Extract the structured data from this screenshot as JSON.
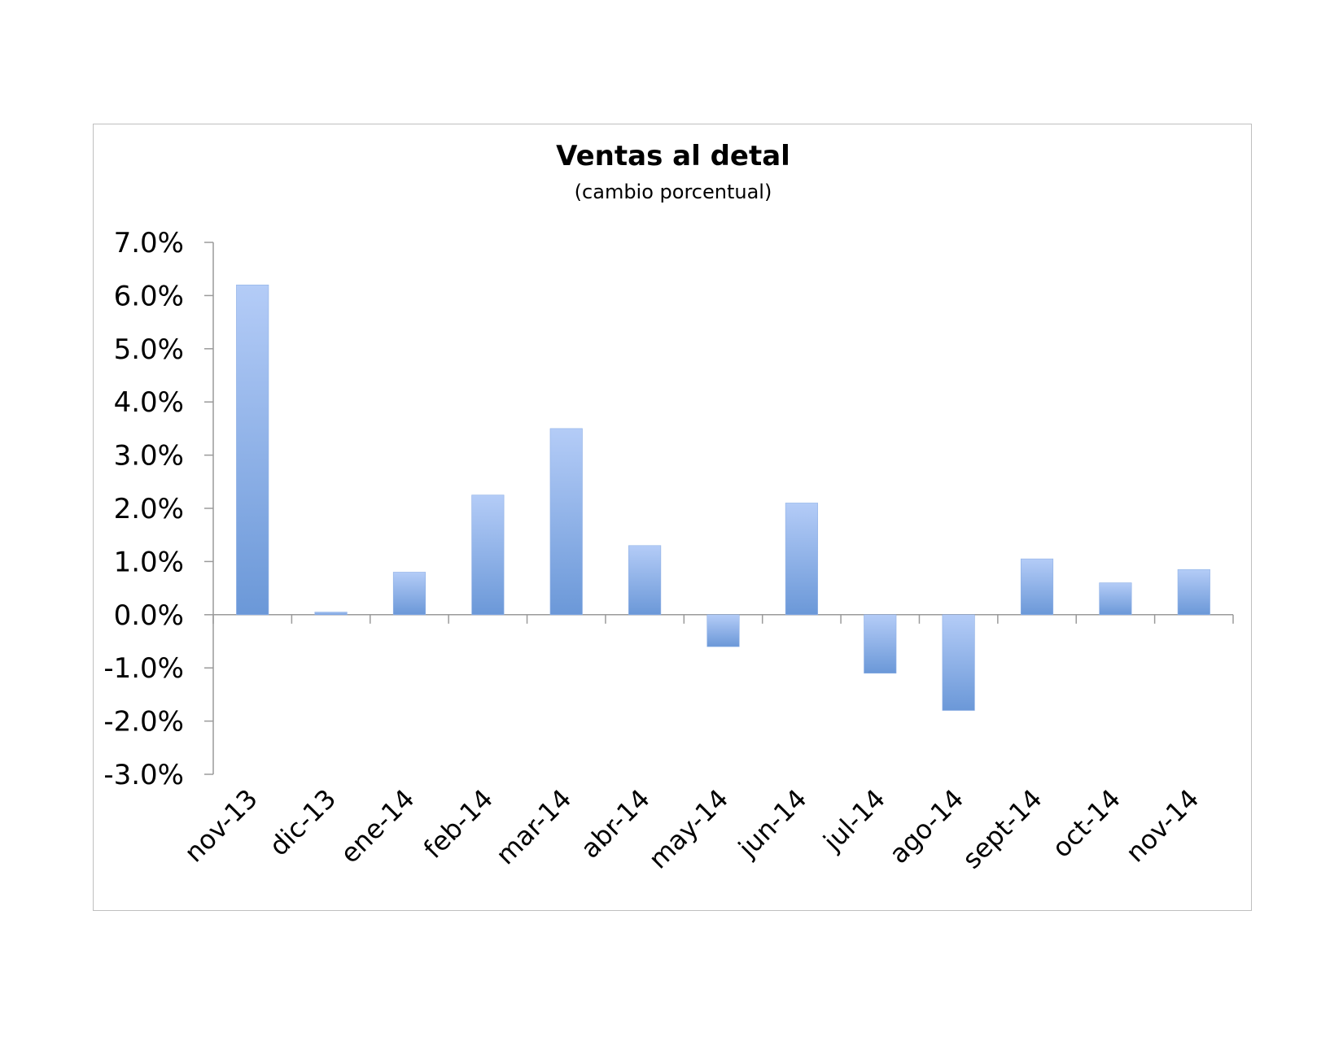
{
  "chart_data": {
    "type": "bar",
    "title": "Ventas al detal",
    "subtitle": "(cambio porcentual)",
    "xlabel": "",
    "ylabel": "",
    "categories": [
      "nov-13",
      "dic-13",
      "ene-14",
      "feb-14",
      "mar-14",
      "abr-14",
      "may-14",
      "jun-14",
      "jul-14",
      "ago-14",
      "sept-14",
      "oct-14",
      "nov-14"
    ],
    "values": [
      6.2,
      0.05,
      0.8,
      2.25,
      3.5,
      1.3,
      -0.6,
      2.1,
      -1.1,
      -1.8,
      1.05,
      0.6,
      0.85
    ],
    "y_ticks": [
      "7.0%",
      "6.0%",
      "5.0%",
      "4.0%",
      "3.0%",
      "2.0%",
      "1.0%",
      "0.0%",
      "-1.0%",
      "-2.0%",
      "-3.0%"
    ],
    "ylim": [
      -3,
      7
    ],
    "grid": false,
    "legend": "none",
    "colors": {
      "bar_light": "#b4ccf7",
      "bar_dark": "#6b98d8",
      "axis": "#9a9a9a"
    }
  }
}
